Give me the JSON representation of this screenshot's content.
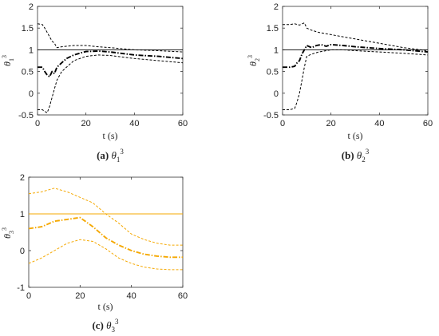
{
  "figure": {
    "panels": [
      {
        "caption_label": "(a)",
        "caption_sym": "θ",
        "caption_sub": "1",
        "caption_sup": "3"
      },
      {
        "caption_label": "(b)",
        "caption_sym": "θ",
        "caption_sub": "2",
        "caption_sup": "3"
      },
      {
        "caption_label": "(c)",
        "caption_sym": "θ",
        "caption_sub": "3",
        "caption_sup": "3"
      }
    ]
  },
  "chart_data": [
    {
      "type": "line",
      "xlabel": "t (s)",
      "ylabel_sym": "θ",
      "ylabel_sub": "1",
      "ylabel_sup": "3",
      "xlim": [
        0,
        60
      ],
      "ylim": [
        -0.5,
        2
      ],
      "xticks": [
        0,
        20,
        40,
        60
      ],
      "yticks": [
        -0.5,
        0,
        0.5,
        1,
        1.5,
        2
      ],
      "ytick_labels": [
        "-0.5",
        "0",
        "0.5",
        "1",
        "1.5",
        "2"
      ],
      "color": "#000000",
      "series": [
        {
          "role": "reference",
          "x": [
            0,
            60
          ],
          "y": [
            1.0,
            1.0
          ]
        },
        {
          "role": "estimate",
          "x": [
            0,
            2,
            3,
            4,
            5,
            6,
            7,
            8,
            10,
            12,
            15,
            18,
            20,
            25,
            30,
            40,
            50,
            60
          ],
          "y": [
            0.6,
            0.6,
            0.5,
            0.42,
            0.38,
            0.5,
            0.45,
            0.6,
            0.7,
            0.8,
            0.88,
            0.93,
            0.96,
            0.97,
            0.95,
            0.88,
            0.85,
            0.8
          ]
        },
        {
          "role": "upper-bound",
          "x": [
            0,
            2,
            3,
            4,
            5,
            6,
            7,
            8,
            10,
            15,
            20,
            25,
            30,
            40,
            50,
            60
          ],
          "y": [
            1.6,
            1.58,
            1.5,
            1.4,
            1.3,
            1.2,
            1.15,
            1.05,
            1.07,
            1.1,
            1.1,
            1.07,
            1.05,
            1.0,
            0.98,
            0.95
          ]
        },
        {
          "role": "lower-bound",
          "x": [
            0,
            2,
            3,
            4,
            5,
            6,
            7,
            8,
            10,
            15,
            20,
            25,
            30,
            40,
            50,
            60
          ],
          "y": [
            -0.38,
            -0.38,
            -0.42,
            -0.45,
            -0.3,
            -0.1,
            0.1,
            0.3,
            0.5,
            0.75,
            0.85,
            0.88,
            0.87,
            0.8,
            0.75,
            0.7
          ]
        }
      ]
    },
    {
      "type": "line",
      "xlabel": "t (s)",
      "ylabel_sym": "θ",
      "ylabel_sub": "2",
      "ylabel_sup": "3",
      "xlim": [
        0,
        60
      ],
      "ylim": [
        -0.5,
        2
      ],
      "xticks": [
        0,
        20,
        40,
        60
      ],
      "yticks": [
        -0.5,
        0,
        0.5,
        1,
        1.5,
        2
      ],
      "ytick_labels": [
        "-0.5",
        "0",
        "0.5",
        "1",
        "1.5",
        "2"
      ],
      "color": "#000000",
      "series": [
        {
          "role": "reference",
          "x": [
            0,
            60
          ],
          "y": [
            1.0,
            1.0
          ]
        },
        {
          "role": "estimate",
          "x": [
            0,
            3,
            5,
            6,
            7,
            8,
            9,
            10,
            12,
            14,
            16,
            18,
            20,
            25,
            30,
            40,
            50,
            60
          ],
          "y": [
            0.6,
            0.6,
            0.62,
            0.7,
            0.75,
            0.9,
            1.0,
            1.1,
            1.05,
            1.1,
            1.12,
            1.08,
            1.12,
            1.1,
            1.07,
            1.03,
            1.0,
            0.95
          ]
        },
        {
          "role": "upper-bound",
          "x": [
            0,
            3,
            5,
            7,
            9,
            10,
            12,
            15,
            20,
            25,
            30,
            40,
            50,
            60
          ],
          "y": [
            1.58,
            1.58,
            1.6,
            1.57,
            1.62,
            1.5,
            1.45,
            1.4,
            1.35,
            1.3,
            1.25,
            1.15,
            1.05,
            0.98
          ]
        },
        {
          "role": "lower-bound",
          "x": [
            0,
            3,
            5,
            6,
            7,
            8,
            9,
            10,
            12,
            15,
            20,
            25,
            30,
            40,
            50,
            60
          ],
          "y": [
            -0.38,
            -0.38,
            -0.35,
            -0.2,
            0.0,
            0.3,
            0.6,
            0.85,
            0.9,
            0.95,
            1.0,
            1.0,
            0.98,
            0.95,
            0.92,
            0.88
          ]
        }
      ]
    },
    {
      "type": "line",
      "xlabel": "t (s)",
      "ylabel_sym": "θ",
      "ylabel_sub": "3",
      "ylabel_sup": "3",
      "xlim": [
        0,
        60
      ],
      "ylim": [
        -1,
        2
      ],
      "xticks": [
        0,
        20,
        40,
        60
      ],
      "yticks": [
        -1,
        0,
        1,
        2
      ],
      "ytick_labels": [
        "-1",
        "0",
        "1",
        "2"
      ],
      "color": "#f5a800",
      "series": [
        {
          "role": "reference",
          "x": [
            0,
            60
          ],
          "y": [
            1.0,
            1.0
          ]
        },
        {
          "role": "estimate",
          "x": [
            0,
            5,
            10,
            15,
            20,
            22,
            25,
            30,
            35,
            40,
            45,
            50,
            55,
            60
          ],
          "y": [
            0.6,
            0.65,
            0.8,
            0.85,
            0.9,
            0.8,
            0.65,
            0.35,
            0.15,
            0.0,
            -0.1,
            -0.15,
            -0.18,
            -0.18
          ]
        },
        {
          "role": "upper-bound",
          "x": [
            0,
            5,
            10,
            15,
            20,
            25,
            30,
            35,
            40,
            45,
            50,
            55,
            60
          ],
          "y": [
            1.55,
            1.6,
            1.7,
            1.6,
            1.45,
            1.3,
            1.0,
            0.75,
            0.45,
            0.3,
            0.2,
            0.15,
            0.15
          ]
        },
        {
          "role": "lower-bound",
          "x": [
            0,
            5,
            10,
            15,
            20,
            25,
            30,
            35,
            40,
            45,
            50,
            55,
            60
          ],
          "y": [
            -0.35,
            -0.2,
            0.0,
            0.2,
            0.3,
            0.25,
            0.05,
            -0.2,
            -0.35,
            -0.45,
            -0.5,
            -0.52,
            -0.52
          ]
        }
      ]
    }
  ]
}
